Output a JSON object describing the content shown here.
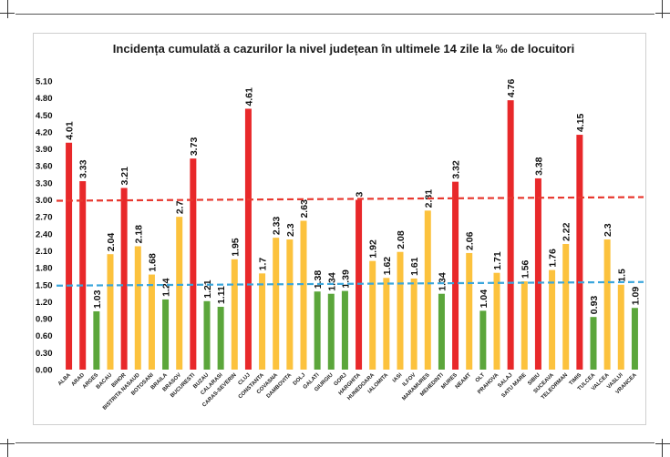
{
  "chart_data": {
    "type": "bar",
    "title": "Incidența cumulată a cazurilor la nivel județean în ultimele 14 zile la ‰ de locuitori",
    "xlabel": "",
    "ylabel": "",
    "ylim": [
      0,
      5.1
    ],
    "yticks": [
      "0.00",
      "0.30",
      "0.60",
      "0.90",
      "1.20",
      "1.50",
      "1.80",
      "2.10",
      "2.40",
      "2.70",
      "3.00",
      "3.30",
      "3.60",
      "3.90",
      "4.20",
      "4.50",
      "4.80",
      "5.10"
    ],
    "categories": [
      "ALBA",
      "ARAD",
      "ARGES",
      "BACAU",
      "BIHOR",
      "BISTRITA NASAUD",
      "BOTOSANI",
      "BRAILA",
      "BRASOV",
      "BUCURESTI",
      "BUZAU",
      "CALARASI",
      "CARAS-SEVERIN",
      "CLUJ",
      "CONSTANTA",
      "COVASNA",
      "DAMBOVITA",
      "DOLJ",
      "GALATI",
      "GIURGIU",
      "GORJ",
      "HARGHITA",
      "HUNEDOARA",
      "IALOMITA",
      "IASI",
      "ILFOV",
      "MARAMURES",
      "MEHEDINTI",
      "MURES",
      "NEAMT",
      "OLT",
      "PRAHOVA",
      "SALAJ",
      "SATU MARE",
      "SIBIU",
      "SUCEAVA",
      "TELEORMAN",
      "TIMIS",
      "TULCEA",
      "VALCEA",
      "VASLUI",
      "VRANCEA"
    ],
    "values": [
      4.01,
      3.33,
      1.03,
      2.04,
      3.21,
      2.18,
      1.68,
      1.24,
      2.7,
      3.73,
      1.21,
      1.11,
      1.95,
      4.61,
      1.7,
      2.33,
      2.3,
      2.63,
      1.38,
      1.34,
      1.39,
      3,
      1.92,
      1.62,
      2.08,
      1.61,
      2.81,
      1.34,
      3.32,
      2.06,
      1.04,
      1.71,
      4.76,
      1.56,
      3.38,
      1.76,
      2.22,
      4.15,
      0.93,
      2.3,
      1.5,
      1.09
    ],
    "value_labels": [
      "4.01",
      "3.33",
      "1.03",
      "2.04",
      "3.21",
      "2.18",
      "1.68",
      "1.24",
      "2.7",
      "3.73",
      "1.21",
      "1.11",
      "1.95",
      "4.61",
      "1.7",
      "2.33",
      "2.3",
      "2.63",
      "1.38",
      "1.34",
      "1.39",
      "3",
      "1.92",
      "1.62",
      "2.08",
      "1.61",
      "2.81",
      "1.34",
      "3.32",
      "2.06",
      "1.04",
      "1.71",
      "4.76",
      "1.56",
      "3.38",
      "1.76",
      "2.22",
      "4.15",
      "0.93",
      "2.3",
      "1.5",
      "1.09"
    ],
    "thresholds": [
      {
        "name": "upper",
        "value": 3.0,
        "color": "#e8382f"
      },
      {
        "name": "lower",
        "value": 1.5,
        "color": "#3aa6dc"
      }
    ],
    "colors": {
      "high": "#e8282a",
      "mid": "#fcc23d",
      "low": "#5ba63b"
    }
  }
}
